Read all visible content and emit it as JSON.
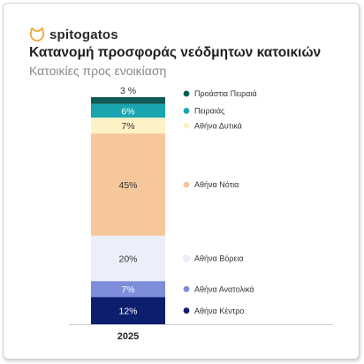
{
  "brand": {
    "name": "spitogatos",
    "logo_icon": "cat-head-icon",
    "accent": "#F2A33A"
  },
  "header": {
    "title": "Κατανομή προσφοράς νεόδμητων κατοικιών",
    "subtitle": "Κατοικίες προς ενοικίαση"
  },
  "chart_data": {
    "type": "bar",
    "stacked": true,
    "normalized_percent": true,
    "categories": [
      "2025"
    ],
    "series": [
      {
        "name": "Αθήνα Κέντρο",
        "values": [
          12
        ],
        "label": "12%",
        "color": "#0E1E6E",
        "label_color": "#ffffff"
      },
      {
        "name": "Αθήνα Ανατολικά",
        "values": [
          7
        ],
        "label": "7%",
        "color": "#7E8DDA",
        "label_color": "#ffffff"
      },
      {
        "name": "Αθήνα Βόρεια",
        "values": [
          20
        ],
        "label": "20%",
        "color": "#ECEEFA",
        "label_color": "#333333"
      },
      {
        "name": "Αθήνα Νότια",
        "values": [
          45
        ],
        "label": "45%",
        "color": "#F7C79C",
        "label_color": "#333333"
      },
      {
        "name": "Αθήνα Δυτικά",
        "values": [
          7
        ],
        "label": "7%",
        "color": "#FCF2C6",
        "label_color": "#333333"
      },
      {
        "name": "Πειραιάς",
        "values": [
          6
        ],
        "label": "6%",
        "color": "#1AA6B1",
        "label_color": "#ffffff"
      },
      {
        "name": "Προάστια Πειραιά",
        "values": [
          3
        ],
        "label": "3 %",
        "color": "#0F5B57",
        "label_color": "#333333",
        "label_position": "above"
      }
    ],
    "ylim": [
      0,
      100
    ],
    "grid": false,
    "legend": "right",
    "legend_order": [
      "Προάστια Πειραιά",
      "Πειραιάς",
      "Αθήνα Δυτικά",
      "Αθήνα Νότια",
      "Αθήνα Βόρεια",
      "Αθήνα Ανατολικά",
      "Αθήνα Κέντρο"
    ]
  }
}
